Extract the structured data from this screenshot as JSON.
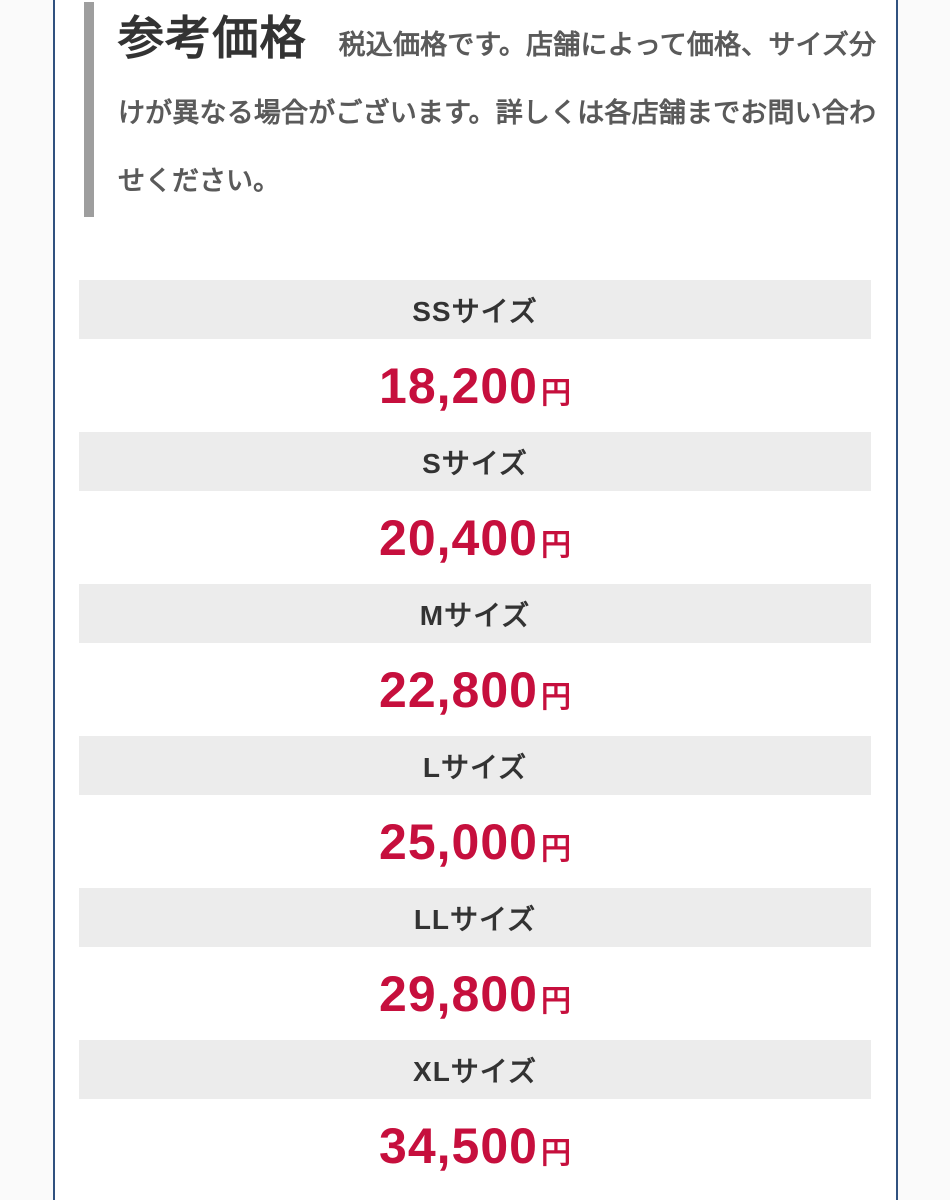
{
  "colors": {
    "frame_blue": "#30517f",
    "accent_bar_gray": "#9e9e9e",
    "row_header_gray": "#ececec",
    "price_red": "#c60f3d",
    "heading_text": "#333333",
    "note_text": "#5a5a5a"
  },
  "header": {
    "title": "参考価格",
    "note": "税込価格です。店舗によって価格、サイズ分けが異なる場合がございます。詳しくは各店舗までお問い合わせください。"
  },
  "price_table": {
    "currency_suffix": "円",
    "rows": [
      {
        "size": "SSサイズ",
        "price": "18,200"
      },
      {
        "size": "Sサイズ",
        "price": "20,400"
      },
      {
        "size": "Mサイズ",
        "price": "22,800"
      },
      {
        "size": "Lサイズ",
        "price": "25,000"
      },
      {
        "size": "LLサイズ",
        "price": "29,800"
      },
      {
        "size": "XLサイズ",
        "price": "34,500"
      }
    ]
  }
}
